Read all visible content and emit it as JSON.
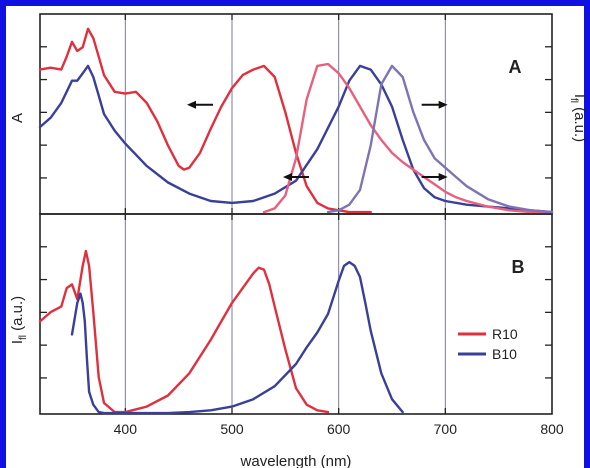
{
  "colors": {
    "border": "#1010e0",
    "grid": "#7a7aa8",
    "axis": "#222222",
    "r10": "#e0303e",
    "b10": "#3a3f9a",
    "r10_emission": "#e8607c",
    "b10_emission": "#7f73b6"
  },
  "chart_data": [
    {
      "type": "line",
      "panel_label": "A",
      "ylabel_left": "A",
      "ylabel_right": "I_fl (a.u.)",
      "xlim": [
        320,
        800
      ],
      "ylim": [
        0,
        1.08
      ],
      "grid_x": [
        400,
        500,
        600,
        700
      ],
      "annotations": [
        "arrow-left at 470 nm",
        "arrow-left at 560 nm",
        "arrow-right at 690 nm",
        "arrow-right at 690 nm"
      ],
      "series": [
        {
          "id": "R10-absorption",
          "color_key": "r10",
          "x": [
            320,
            330,
            340,
            345,
            350,
            355,
            360,
            365,
            370,
            375,
            380,
            390,
            400,
            410,
            420,
            430,
            440,
            450,
            455,
            460,
            470,
            480,
            490,
            500,
            510,
            520,
            530,
            540,
            550,
            560,
            570,
            580,
            590,
            600,
            610,
            620,
            630
          ],
          "y": [
            0.78,
            0.79,
            0.78,
            0.85,
            0.93,
            0.88,
            0.9,
            1.0,
            0.95,
            0.85,
            0.75,
            0.66,
            0.65,
            0.66,
            0.6,
            0.5,
            0.37,
            0.26,
            0.24,
            0.25,
            0.33,
            0.46,
            0.58,
            0.68,
            0.75,
            0.78,
            0.8,
            0.74,
            0.55,
            0.33,
            0.15,
            0.06,
            0.03,
            0.02,
            0.01,
            0.01,
            0.01
          ]
        },
        {
          "id": "B10-absorption",
          "color_key": "b10",
          "x": [
            320,
            330,
            340,
            350,
            355,
            360,
            365,
            370,
            375,
            380,
            390,
            400,
            420,
            440,
            460,
            480,
            500,
            520,
            540,
            560,
            580,
            600,
            610,
            620,
            630,
            640,
            650,
            660,
            670,
            680,
            690,
            700,
            720,
            740,
            760,
            780,
            800
          ],
          "y": [
            0.47,
            0.52,
            0.6,
            0.72,
            0.72,
            0.76,
            0.8,
            0.74,
            0.64,
            0.54,
            0.45,
            0.38,
            0.26,
            0.17,
            0.11,
            0.07,
            0.06,
            0.07,
            0.11,
            0.18,
            0.35,
            0.58,
            0.72,
            0.8,
            0.78,
            0.7,
            0.58,
            0.4,
            0.24,
            0.14,
            0.09,
            0.07,
            0.05,
            0.04,
            0.03,
            0.02,
            0.01
          ]
        },
        {
          "id": "R10-emission",
          "color_key": "r10_emission",
          "x": [
            530,
            540,
            550,
            560,
            570,
            580,
            590,
            600,
            610,
            620,
            630,
            640,
            650,
            660,
            670,
            680,
            690,
            700,
            710,
            720,
            740,
            760,
            780,
            800
          ],
          "y": [
            0.01,
            0.03,
            0.1,
            0.3,
            0.62,
            0.8,
            0.81,
            0.76,
            0.68,
            0.58,
            0.48,
            0.4,
            0.33,
            0.28,
            0.24,
            0.2,
            0.16,
            0.12,
            0.09,
            0.07,
            0.04,
            0.02,
            0.01,
            0.005
          ]
        },
        {
          "id": "B10-emission",
          "color_key": "b10_emission",
          "x": [
            590,
            600,
            610,
            620,
            630,
            640,
            650,
            660,
            670,
            680,
            690,
            700,
            710,
            720,
            740,
            760,
            780,
            800
          ],
          "y": [
            0.01,
            0.02,
            0.05,
            0.13,
            0.37,
            0.7,
            0.8,
            0.74,
            0.55,
            0.4,
            0.3,
            0.25,
            0.2,
            0.15,
            0.08,
            0.04,
            0.02,
            0.01
          ]
        }
      ]
    },
    {
      "type": "line",
      "panel_label": "B",
      "ylabel_left": "I_fl (a.u.)",
      "xlabel": "wavelength (nm)",
      "xlim": [
        320,
        800
      ],
      "ylim": [
        0,
        1.08
      ],
      "x_ticks": [
        400,
        500,
        600,
        700,
        800
      ],
      "grid_x": [
        400,
        500,
        600,
        700
      ],
      "legend_position": "right",
      "series": [
        {
          "name": "R10",
          "color_key": "r10",
          "x": [
            320,
            330,
            340,
            345,
            350,
            355,
            360,
            363,
            366,
            370,
            375,
            380,
            390,
            400,
            420,
            440,
            460,
            480,
            490,
            500,
            510,
            520,
            525,
            530,
            535,
            540,
            550,
            560,
            570,
            580,
            590
          ],
          "y": [
            0.5,
            0.55,
            0.58,
            0.68,
            0.7,
            0.62,
            0.8,
            0.88,
            0.8,
            0.55,
            0.2,
            0.06,
            0.01,
            0.01,
            0.04,
            0.1,
            0.22,
            0.4,
            0.5,
            0.6,
            0.68,
            0.76,
            0.79,
            0.78,
            0.7,
            0.58,
            0.35,
            0.14,
            0.05,
            0.02,
            0.01
          ]
        },
        {
          "name": "B10",
          "color_key": "b10",
          "x": [
            350,
            355,
            358,
            360,
            362,
            364,
            366,
            370,
            375,
            380,
            390,
            400,
            420,
            440,
            460,
            480,
            500,
            520,
            540,
            560,
            570,
            580,
            590,
            600,
            605,
            610,
            615,
            620,
            625,
            630,
            640,
            650,
            660
          ],
          "y": [
            0.43,
            0.6,
            0.65,
            0.6,
            0.5,
            0.3,
            0.12,
            0.05,
            0.01,
            0.005,
            0.005,
            0.005,
            0.005,
            0.005,
            0.01,
            0.02,
            0.04,
            0.08,
            0.15,
            0.27,
            0.36,
            0.44,
            0.54,
            0.72,
            0.8,
            0.82,
            0.8,
            0.74,
            0.6,
            0.45,
            0.22,
            0.08,
            0.01
          ]
        }
      ]
    }
  ]
}
